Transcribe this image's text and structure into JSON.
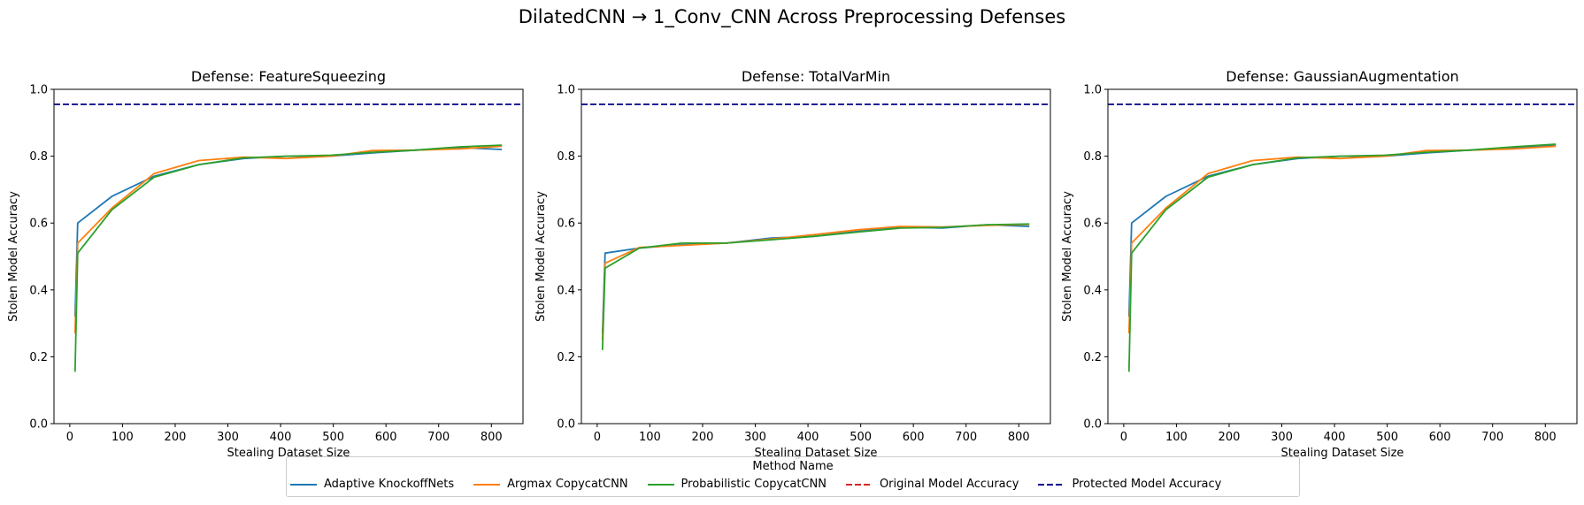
{
  "suptitle": "DilatedCNN → 1_Conv_CNN Across Preprocessing Defenses",
  "legend": {
    "title": "Method Name",
    "placement": "lower-center",
    "items": [
      {
        "label": "Adaptive KnockoffNets",
        "color": "#1f77b4",
        "style": "solid"
      },
      {
        "label": "Argmax CopycatCNN",
        "color": "#ff7f0e",
        "style": "solid"
      },
      {
        "label": "Probabilistic CopycatCNN",
        "color": "#2ca02c",
        "style": "solid"
      },
      {
        "label": "Original Model Accuracy",
        "color": "#d62728",
        "style": "dashed"
      },
      {
        "label": "Protected Model Accuracy",
        "color": "#00008b",
        "style": "dashed"
      }
    ]
  },
  "chart_data": [
    {
      "type": "line",
      "title": "Defense: FeatureSqueezing",
      "xlabel": "Stealing Dataset Size",
      "ylabel": "Stolen Model Accuracy",
      "xlim": [
        -30,
        860
      ],
      "ylim": [
        0,
        1.0
      ],
      "xticks": [
        0,
        100,
        200,
        300,
        400,
        500,
        600,
        700,
        800
      ],
      "yticks": [
        0.0,
        0.2,
        0.4,
        0.6,
        0.8,
        1.0
      ],
      "hlines": [
        {
          "name": "Protected Model Accuracy",
          "y": 0.955,
          "color": "#00008b"
        }
      ],
      "series": [
        {
          "name": "Adaptive KnockoffNets",
          "color": "#1f77b4",
          "x": [
            10,
            15,
            80,
            160,
            245,
            330,
            410,
            495,
            575,
            655,
            740,
            820
          ],
          "y": [
            0.32,
            0.6,
            0.68,
            0.74,
            0.775,
            0.793,
            0.8,
            0.8,
            0.81,
            0.818,
            0.826,
            0.82
          ]
        },
        {
          "name": "Argmax CopycatCNN",
          "color": "#ff7f0e",
          "x": [
            10,
            15,
            80,
            160,
            245,
            330,
            410,
            495,
            575,
            655,
            740,
            820
          ],
          "y": [
            0.27,
            0.54,
            0.645,
            0.748,
            0.787,
            0.797,
            0.793,
            0.8,
            0.817,
            0.818,
            0.822,
            0.83
          ]
        },
        {
          "name": "Probabilistic CopycatCNN",
          "color": "#2ca02c",
          "x": [
            10,
            15,
            80,
            160,
            245,
            330,
            410,
            495,
            575,
            655,
            740,
            820
          ],
          "y": [
            0.155,
            0.51,
            0.64,
            0.737,
            0.775,
            0.795,
            0.8,
            0.803,
            0.812,
            0.818,
            0.828,
            0.833
          ]
        }
      ]
    },
    {
      "type": "line",
      "title": "Defense: TotalVarMin",
      "xlabel": "Stealing Dataset Size",
      "ylabel": "Stolen Model Accuracy",
      "xlim": [
        -30,
        860
      ],
      "ylim": [
        0,
        1.0
      ],
      "xticks": [
        0,
        100,
        200,
        300,
        400,
        500,
        600,
        700,
        800
      ],
      "yticks": [
        0.0,
        0.2,
        0.4,
        0.6,
        0.8,
        1.0
      ],
      "hlines": [
        {
          "name": "Protected Model Accuracy",
          "y": 0.955,
          "color": "#00008b"
        }
      ],
      "series": [
        {
          "name": "Adaptive KnockoffNets",
          "color": "#1f77b4",
          "x": [
            10,
            15,
            80,
            160,
            245,
            330,
            410,
            495,
            575,
            655,
            740,
            820
          ],
          "y": [
            0.27,
            0.51,
            0.525,
            0.535,
            0.54,
            0.555,
            0.56,
            0.575,
            0.588,
            0.585,
            0.595,
            0.59
          ]
        },
        {
          "name": "Argmax CopycatCNN",
          "color": "#ff7f0e",
          "x": [
            10,
            15,
            80,
            160,
            245,
            330,
            410,
            495,
            575,
            655,
            740,
            820
          ],
          "y": [
            0.25,
            0.48,
            0.527,
            0.533,
            0.54,
            0.552,
            0.565,
            0.58,
            0.59,
            0.588,
            0.593,
            0.596
          ]
        },
        {
          "name": "Probabilistic CopycatCNN",
          "color": "#2ca02c",
          "x": [
            10,
            15,
            80,
            160,
            245,
            330,
            410,
            495,
            575,
            655,
            740,
            820
          ],
          "y": [
            0.22,
            0.465,
            0.525,
            0.54,
            0.54,
            0.55,
            0.56,
            0.573,
            0.585,
            0.587,
            0.595,
            0.597
          ]
        }
      ]
    },
    {
      "type": "line",
      "title": "Defense: GaussianAugmentation",
      "xlabel": "Stealing Dataset Size",
      "ylabel": "Stolen Model Accuracy",
      "xlim": [
        -30,
        860
      ],
      "ylim": [
        0,
        1.0
      ],
      "xticks": [
        0,
        100,
        200,
        300,
        400,
        500,
        600,
        700,
        800
      ],
      "yticks": [
        0.0,
        0.2,
        0.4,
        0.6,
        0.8,
        1.0
      ],
      "hlines": [
        {
          "name": "Protected Model Accuracy",
          "y": 0.955,
          "color": "#00008b"
        }
      ],
      "series": [
        {
          "name": "Adaptive KnockoffNets",
          "color": "#1f77b4",
          "x": [
            10,
            15,
            80,
            160,
            245,
            330,
            410,
            495,
            575,
            655,
            740,
            820
          ],
          "y": [
            0.32,
            0.6,
            0.68,
            0.74,
            0.775,
            0.793,
            0.8,
            0.8,
            0.81,
            0.818,
            0.826,
            0.833
          ]
        },
        {
          "name": "Argmax CopycatCNN",
          "color": "#ff7f0e",
          "x": [
            10,
            15,
            80,
            160,
            245,
            330,
            410,
            495,
            575,
            655,
            740,
            820
          ],
          "y": [
            0.27,
            0.54,
            0.645,
            0.748,
            0.787,
            0.797,
            0.793,
            0.8,
            0.817,
            0.818,
            0.822,
            0.83
          ]
        },
        {
          "name": "Probabilistic CopycatCNN",
          "color": "#2ca02c",
          "x": [
            10,
            15,
            80,
            160,
            245,
            330,
            410,
            495,
            575,
            655,
            740,
            820
          ],
          "y": [
            0.155,
            0.51,
            0.64,
            0.737,
            0.775,
            0.795,
            0.8,
            0.803,
            0.812,
            0.818,
            0.828,
            0.836
          ]
        }
      ]
    }
  ]
}
